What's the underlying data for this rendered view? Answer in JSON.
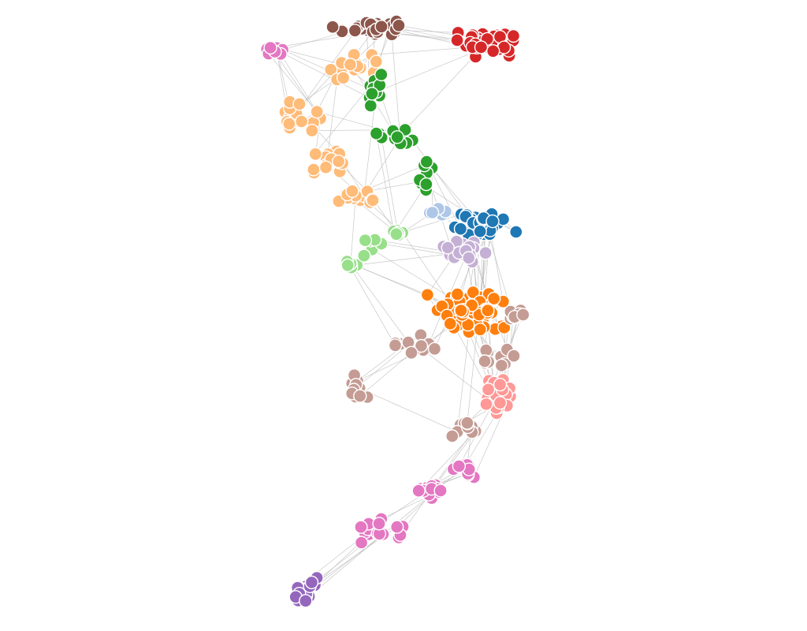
{
  "diagram": {
    "type": "force-directed-network",
    "communities": [
      {
        "id": "brown",
        "color": "#8c564b",
        "node_count": 28
      },
      {
        "id": "red",
        "color": "#d62728",
        "node_count": 40
      },
      {
        "id": "peach",
        "color": "#ffbb78",
        "node_count": 60
      },
      {
        "id": "green",
        "color": "#2ca02c",
        "node_count": 32
      },
      {
        "id": "light-green",
        "color": "#98df8a",
        "node_count": 22
      },
      {
        "id": "blue",
        "color": "#1f77b4",
        "node_count": 36
      },
      {
        "id": "light-blue",
        "color": "#aec7e8",
        "node_count": 6
      },
      {
        "id": "lavender",
        "color": "#c5b0d5",
        "node_count": 22
      },
      {
        "id": "orange",
        "color": "#ff7f0e",
        "node_count": 60
      },
      {
        "id": "rose-brown",
        "color": "#c49c94",
        "node_count": 52
      },
      {
        "id": "pink",
        "color": "#ff9896",
        "node_count": 28
      },
      {
        "id": "magenta",
        "color": "#e377c2",
        "node_count": 62
      },
      {
        "id": "purple",
        "color": "#9467bd",
        "node_count": 18
      }
    ],
    "edge_color": "#b5b5b5",
    "node_outline_color": "#ffffff"
  }
}
